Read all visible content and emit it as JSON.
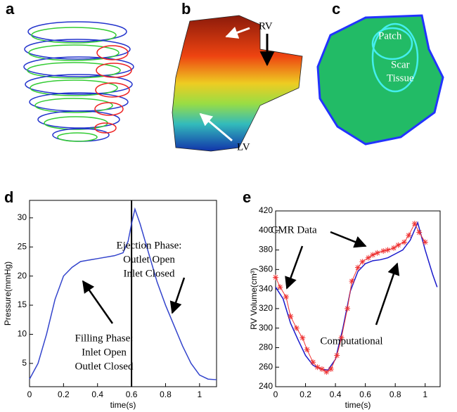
{
  "panels": {
    "a": {
      "label": "a"
    },
    "b": {
      "label": "b",
      "labels": [
        "RV",
        "LV"
      ]
    },
    "c": {
      "label": "c",
      "labels": [
        "Patch",
        "Scar",
        "Tissue"
      ]
    }
  },
  "chart_data": [
    {
      "type": "line",
      "panel": "d",
      "xlabel": "time(s)",
      "ylabel": "Pressure(mmHg)",
      "xlim": [
        0,
        1.1
      ],
      "ylim": [
        1,
        33
      ],
      "xticks": [
        0,
        0.2,
        0.4,
        0.6,
        0.8,
        1
      ],
      "yticks": [
        5,
        10,
        15,
        20,
        25,
        30
      ],
      "vline": 0.6,
      "vline_color": "#000000",
      "series": [
        {
          "name": "Pressure",
          "color": "#3344cc",
          "x": [
            0,
            0.05,
            0.1,
            0.15,
            0.2,
            0.25,
            0.3,
            0.4,
            0.5,
            0.55,
            0.58,
            0.6,
            0.62,
            0.65,
            0.7,
            0.75,
            0.8,
            0.85,
            0.9,
            0.95,
            1.0,
            1.05,
            1.1
          ],
          "values": [
            2.3,
            5,
            10,
            16,
            20,
            21.5,
            22.5,
            23,
            23.5,
            24,
            26,
            29,
            31.5,
            29,
            24,
            19,
            15,
            11.5,
            8,
            5,
            3,
            2.3,
            2.2
          ]
        }
      ],
      "annotations": [
        "Filling Phase:",
        "Inlet Open",
        "Outlet Closed",
        "Ejection Phase:",
        "Outlet Open",
        "Inlet Closed"
      ]
    },
    {
      "type": "line",
      "panel": "e",
      "xlabel": "time(s)",
      "ylabel": "RV Volume(cm³)",
      "xlim": [
        0,
        1.1
      ],
      "ylim": [
        240,
        420
      ],
      "xticks": [
        0,
        0.2,
        0.4,
        0.6,
        0.8,
        1
      ],
      "yticks": [
        240,
        260,
        280,
        300,
        320,
        340,
        360,
        380,
        400,
        420
      ],
      "series": [
        {
          "name": "Computational",
          "color": "#1a1acc",
          "marker": "none",
          "x": [
            0,
            0.05,
            0.1,
            0.15,
            0.2,
            0.25,
            0.3,
            0.35,
            0.4,
            0.45,
            0.5,
            0.55,
            0.6,
            0.65,
            0.7,
            0.75,
            0.8,
            0.85,
            0.9,
            0.95,
            1.0,
            1.05,
            1.08
          ],
          "values": [
            342,
            330,
            305,
            288,
            272,
            262,
            258,
            257,
            268,
            300,
            338,
            358,
            366,
            369,
            370,
            372,
            376,
            380,
            390,
            408,
            380,
            355,
            342
          ]
        },
        {
          "name": "CMR Data",
          "color": "#ee3333",
          "marker": "star",
          "x": [
            0,
            0.03,
            0.07,
            0.1,
            0.14,
            0.18,
            0.21,
            0.25,
            0.28,
            0.31,
            0.34,
            0.37,
            0.41,
            0.44,
            0.48,
            0.51,
            0.55,
            0.58,
            0.62,
            0.65,
            0.68,
            0.72,
            0.75,
            0.79,
            0.82,
            0.86,
            0.89,
            0.93,
            0.96,
            1.0
          ],
          "values": [
            352,
            342,
            332,
            312,
            300,
            290,
            278,
            265,
            260,
            258,
            255,
            258,
            272,
            290,
            320,
            348,
            362,
            368,
            372,
            375,
            377,
            379,
            380,
            382,
            385,
            388,
            395,
            407,
            398,
            388
          ]
        }
      ],
      "annotations": [
        "CMR Data",
        "Computational"
      ]
    }
  ]
}
